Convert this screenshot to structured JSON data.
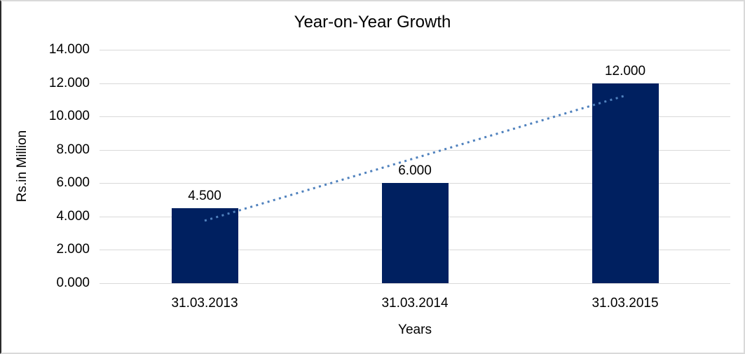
{
  "chart_data": {
    "type": "bar",
    "title": "Year-on-Year Growth",
    "xlabel": "Years",
    "ylabel": "Rs.in Million",
    "categories": [
      "31.03.2013",
      "31.03.2014",
      "31.03.2015"
    ],
    "values": [
      4.5,
      6.0,
      12.0
    ],
    "data_labels": [
      "4.500",
      "6.000",
      "12.000"
    ],
    "ylim": [
      0,
      14
    ],
    "ytick_step": 2,
    "ytick_labels": [
      "0.000",
      "2.000",
      "4.000",
      "6.000",
      "8.000",
      "10.000",
      "12.000",
      "14.000"
    ],
    "grid": true,
    "legend": "none",
    "colors": {
      "bar": "#002060",
      "gridline": "#d9d9d9",
      "trendline": "#4f81bd",
      "text": "#000000"
    },
    "trendline": {
      "style": "dotted",
      "description": "linear trendline from first bar center to last bar center",
      "y_start_value": 3.75,
      "y_end_value": 11.25
    }
  }
}
